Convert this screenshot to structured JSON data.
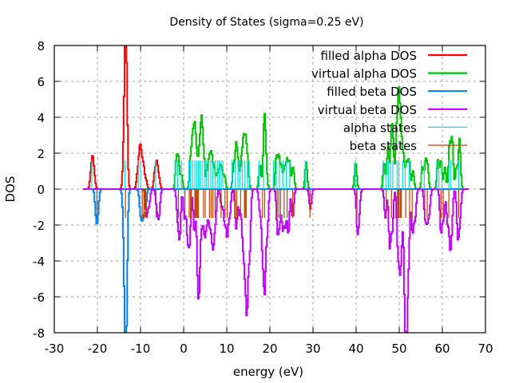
{
  "chart_data": {
    "type": "line",
    "title": "Density of States (sigma=0.25 eV)",
    "xlabel": "energy (eV)",
    "ylabel": "DOS",
    "xlim": [
      -30,
      70
    ],
    "ylim": [
      -8,
      8
    ],
    "xticks": [
      -30,
      -20,
      -10,
      0,
      10,
      20,
      30,
      40,
      50,
      60,
      70
    ],
    "yticks": [
      -8,
      -6,
      -4,
      -2,
      0,
      2,
      4,
      6,
      8
    ],
    "grid": true,
    "legend_position": "top-right",
    "sigma": 0.25,
    "dos_range": [
      -23.3,
      66
    ],
    "series": [
      {
        "name": "filled alpha DOS",
        "color": "#ff0000",
        "sign": 1,
        "peaks": [
          [
            -21.6,
            0.8
          ],
          [
            -21.2,
            1.5
          ],
          [
            -20.8,
            0.6
          ],
          [
            -14.0,
            1.6
          ],
          [
            -13.7,
            3.2
          ],
          [
            -13.5,
            4.3
          ],
          [
            -13.3,
            3.0
          ],
          [
            -10.8,
            0.8
          ],
          [
            -10.3,
            1.9
          ],
          [
            -9.9,
            1.5
          ],
          [
            -9.4,
            1.2
          ],
          [
            -8.8,
            0.5
          ],
          [
            -6.8,
            0.9
          ],
          [
            -6.3,
            1.4
          ],
          [
            -5.8,
            0.6
          ]
        ]
      },
      {
        "name": "virtual alpha DOS",
        "color": "#00c000",
        "sign": 1,
        "peaks": [
          [
            -1.8,
            1.6
          ],
          [
            -1.3,
            1.6
          ],
          [
            -0.6,
            0.8
          ],
          [
            1.5,
            1.5
          ],
          [
            2.0,
            2.6
          ],
          [
            2.5,
            3.2
          ],
          [
            3.0,
            1.5
          ],
          [
            3.6,
            2.2
          ],
          [
            4.1,
            3.6
          ],
          [
            4.6,
            1.6
          ],
          [
            5.4,
            1.0
          ],
          [
            5.9,
            1.6
          ],
          [
            6.4,
            1.8
          ],
          [
            7.0,
            1.2
          ],
          [
            7.7,
            0.8
          ],
          [
            8.3,
            1.2
          ],
          [
            8.8,
            1.0
          ],
          [
            9.4,
            0.7
          ],
          [
            11.5,
            1.3
          ],
          [
            12.1,
            2.4
          ],
          [
            12.6,
            1.2
          ],
          [
            13.3,
            1.5
          ],
          [
            13.8,
            2.5
          ],
          [
            14.3,
            2.5
          ],
          [
            14.8,
            1.4
          ],
          [
            17.6,
            1.4
          ],
          [
            18.6,
            3.7
          ],
          [
            19.0,
            1.6
          ],
          [
            21.4,
            1.8
          ],
          [
            22.0,
            1.8
          ],
          [
            22.6,
            1.2
          ],
          [
            23.3,
            1.2
          ],
          [
            23.9,
            1.6
          ],
          [
            24.5,
            1.5
          ],
          [
            25.3,
            1.2
          ],
          [
            28.3,
            1.5
          ],
          [
            39.8,
            1.5
          ],
          [
            46.4,
            1.5
          ],
          [
            47.3,
            2.3
          ],
          [
            48.1,
            3.0
          ],
          [
            48.5,
            2.0
          ],
          [
            49.3,
            3.0
          ],
          [
            49.8,
            5.0
          ],
          [
            50.3,
            3.2
          ],
          [
            50.9,
            1.8
          ],
          [
            51.6,
            1.5
          ],
          [
            52.2,
            1.6
          ],
          [
            53.1,
            1.0
          ],
          [
            55.3,
            1.2
          ],
          [
            56.0,
            1.5
          ],
          [
            56.5,
            1.2
          ],
          [
            58.9,
            1.6
          ],
          [
            59.6,
            1.6
          ],
          [
            60.5,
            1.2
          ],
          [
            61.6,
            2.5
          ],
          [
            62.2,
            2.8
          ],
          [
            63.2,
            1.2
          ],
          [
            63.9,
            2.8
          ]
        ]
      },
      {
        "name": "filled beta DOS",
        "color": "#0080f0",
        "sign": -1,
        "peaks": [
          [
            -20.4,
            1.4
          ],
          [
            -20.0,
            1.3
          ],
          [
            -14.0,
            1.6
          ],
          [
            -13.7,
            3.5
          ],
          [
            -13.5,
            4.3
          ],
          [
            -13.3,
            3.5
          ],
          [
            -10.1,
            1.3
          ],
          [
            -9.6,
            1.5
          ],
          [
            -9.0,
            1.4
          ]
        ]
      },
      {
        "name": "virtual beta DOS",
        "color": "#c000ff",
        "sign": -1,
        "peaks": [
          [
            -8.7,
            1.5
          ],
          [
            -8.1,
            0.9
          ],
          [
            -6.3,
            1.1
          ],
          [
            -5.8,
            1.5
          ],
          [
            -1.5,
            1.5
          ],
          [
            -1.0,
            2.6
          ],
          [
            0.1,
            1.6
          ],
          [
            0.8,
            2.5
          ],
          [
            1.3,
            2.8
          ],
          [
            2.4,
            2.4
          ],
          [
            3.2,
            4.6
          ],
          [
            3.6,
            3.8
          ],
          [
            4.2,
            1.8
          ],
          [
            4.8,
            2.4
          ],
          [
            5.3,
            1.6
          ],
          [
            5.9,
            1.8
          ],
          [
            6.4,
            1.8
          ],
          [
            6.8,
            2.6
          ],
          [
            7.3,
            1.6
          ],
          [
            8.7,
            1.0
          ],
          [
            9.4,
            1.8
          ],
          [
            10.0,
            2.6
          ],
          [
            10.6,
            1.4
          ],
          [
            12.1,
            2.2
          ],
          [
            12.9,
            1.4
          ],
          [
            13.6,
            2.6
          ],
          [
            14.1,
            3.8
          ],
          [
            14.6,
            6.4
          ],
          [
            15.2,
            3.6
          ],
          [
            17.6,
            1.2
          ],
          [
            18.2,
            3.2
          ],
          [
            18.7,
            5.3
          ],
          [
            19.3,
            2.4
          ],
          [
            21.7,
            2.3
          ],
          [
            22.2,
            1.7
          ],
          [
            22.9,
            2.2
          ],
          [
            23.5,
            2.0
          ],
          [
            24.2,
            2.5
          ],
          [
            25.2,
            1.6
          ],
          [
            29.3,
            1.1
          ],
          [
            40.2,
            2.1
          ],
          [
            40.6,
            1.2
          ],
          [
            46.7,
            1.6
          ],
          [
            47.7,
            3.2
          ],
          [
            48.3,
            2.2
          ],
          [
            49.6,
            3.2
          ],
          [
            50.1,
            3.8
          ],
          [
            50.5,
            2.0
          ],
          [
            51.2,
            5.2
          ],
          [
            51.6,
            7.0
          ],
          [
            52.1,
            3.5
          ],
          [
            53.0,
            2.4
          ],
          [
            53.6,
            1.6
          ],
          [
            55.9,
            1.5
          ],
          [
            56.4,
            1.6
          ],
          [
            56.9,
            1.2
          ],
          [
            59.6,
            2.4
          ],
          [
            60.2,
            1.6
          ],
          [
            61.1,
            1.8
          ],
          [
            61.7,
            2.8
          ],
          [
            62.1,
            1.8
          ],
          [
            63.5,
            2.6
          ],
          [
            64.0,
            1.6
          ]
        ]
      }
    ],
    "states": [
      {
        "name": "alpha states",
        "color": "#00e0e0",
        "sign": 1,
        "height": 1.6,
        "energies": [
          -21.3,
          -13.6,
          -10.5,
          -10.0,
          -6.5,
          -2.0,
          -1.4,
          -0.5,
          1.2,
          1.6,
          2.1,
          2.6,
          3.0,
          3.4,
          3.8,
          4.3,
          4.8,
          5.3,
          5.8,
          6.3,
          6.8,
          7.3,
          7.8,
          8.2,
          8.7,
          9.1,
          11.2,
          12.0,
          12.6,
          13.0,
          13.6,
          14.2,
          14.8,
          15.2,
          17.5,
          18.5,
          20.8,
          21.5,
          22.2,
          23.0,
          23.8,
          24.6,
          28.2,
          39.8,
          46.3,
          47.0,
          47.5,
          48.0,
          48.5,
          49.5,
          49.9,
          50.8,
          51.4,
          52.3,
          55.1,
          55.8,
          58.7,
          59.2,
          59.9,
          61.5,
          62.0,
          63.8
        ]
      },
      {
        "name": "beta states",
        "color": "#c04000",
        "sign": -1,
        "height": 1.6,
        "energies": [
          -20.1,
          -13.5,
          -9.6,
          -9.2,
          -8.8,
          -6.4,
          -1.2,
          0.3,
          1.3,
          1.6,
          1.8,
          2.6,
          2.8,
          3.0,
          3.2,
          3.4,
          4.6,
          5.0,
          6.0,
          6.4,
          6.8,
          7.3,
          8.7,
          9.6,
          10.1,
          11.9,
          12.3,
          13.2,
          14.1,
          14.3,
          14.5,
          18.3,
          18.8,
          21.7,
          22.1,
          22.5,
          23.3,
          24.0,
          25.3,
          29.3,
          40.2,
          47.0,
          48.2,
          49.6,
          49.8,
          50.0,
          50.3,
          50.5,
          51.5,
          52.4,
          53.0,
          55.9,
          56.5,
          59.7,
          60.2,
          61.5,
          63.8
        ]
      }
    ],
    "legend": [
      {
        "label": "filled alpha DOS",
        "color": "#ff0000"
      },
      {
        "label": "virtual alpha DOS",
        "color": "#00c000"
      },
      {
        "label": "filled beta DOS",
        "color": "#0080f0"
      },
      {
        "label": "virtual beta DOS",
        "color": "#c000ff"
      },
      {
        "label": "alpha states",
        "color": "#00e0e0"
      },
      {
        "label": "beta states",
        "color": "#c04000"
      }
    ]
  }
}
